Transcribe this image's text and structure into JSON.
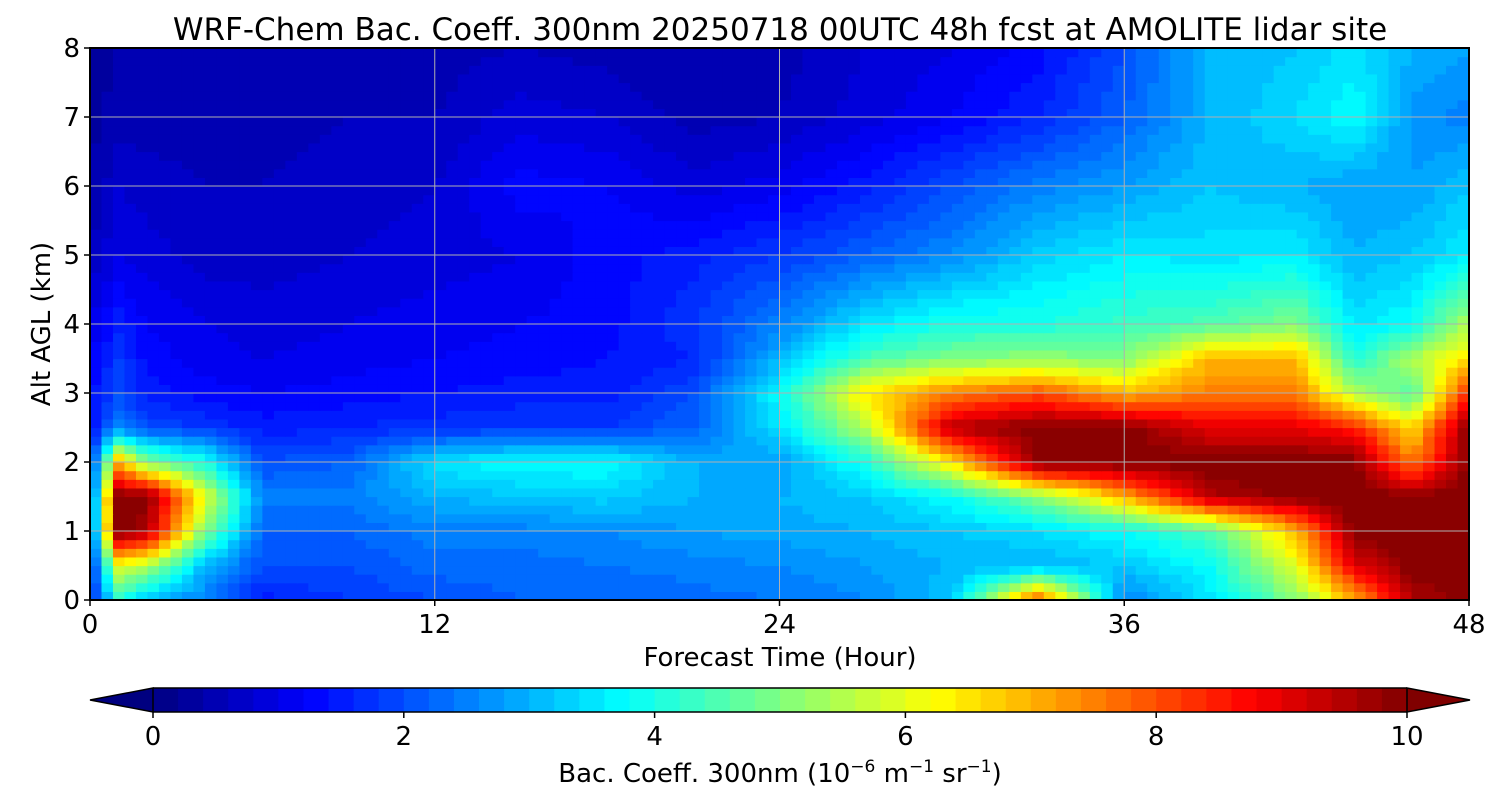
{
  "chart_data": {
    "type": "heatmap",
    "title": "WRF-Chem Bac. Coeff. 300nm  20250718 00UTC 48h fcst at AMOLITE lidar site",
    "xlabel": "Forecast Time (Hour)",
    "ylabel": "Alt AGL (km)",
    "xlim": [
      0,
      48
    ],
    "ylim": [
      0,
      8
    ],
    "xticks": [
      "0",
      "12",
      "24",
      "36",
      "48"
    ],
    "yticks": [
      "0",
      "1",
      "2",
      "3",
      "4",
      "5",
      "6",
      "7",
      "8"
    ],
    "grid": true,
    "colormap": "jet",
    "colorbar": {
      "label_main": "Bac. Coeff. 300nm  (10",
      "exp1": "−6",
      "label_mid": " m",
      "exp2": "−1",
      "label_mid2": " sr",
      "exp3": "−1",
      "label_end": ")",
      "range": [
        0,
        10
      ],
      "extend": "both",
      "orientation": "horizontal",
      "ticks": [
        "0",
        "2",
        "4",
        "6",
        "8",
        "10"
      ]
    },
    "x_hours": [
      0,
      1,
      2,
      4,
      6,
      9,
      12,
      15,
      18,
      21,
      24,
      27,
      30,
      33,
      36,
      39,
      42,
      44,
      46,
      48
    ],
    "y_km": [
      0,
      0.5,
      1,
      1.5,
      2,
      2.5,
      3,
      3.5,
      4,
      5,
      6,
      7,
      8
    ],
    "values": [
      [
        1.5,
        4.0,
        3.0,
        2.5,
        1.5,
        1.8,
        2.0,
        2.2,
        2.2,
        2.3,
        2.4,
        2.6,
        3.2,
        8.0,
        2.5,
        3.5,
        5.0,
        7.0,
        9.5,
        10.0
      ],
      [
        1.5,
        6.0,
        5.5,
        3.0,
        2.0,
        2.0,
        2.3,
        2.3,
        2.4,
        2.5,
        2.6,
        2.8,
        3.0,
        3.0,
        3.2,
        3.8,
        6.0,
        9.0,
        10.0,
        10.0
      ],
      [
        1.5,
        10.0,
        9.5,
        5.0,
        2.2,
        2.2,
        2.5,
        2.5,
        2.6,
        2.8,
        2.9,
        3.0,
        3.2,
        3.4,
        3.8,
        4.5,
        7.0,
        10.0,
        10.0,
        10.0
      ],
      [
        1.5,
        10.0,
        10.0,
        6.0,
        2.5,
        2.5,
        3.0,
        3.2,
        3.3,
        3.0,
        3.0,
        3.2,
        3.8,
        5.0,
        7.0,
        9.5,
        10.0,
        10.0,
        10.0,
        10.0
      ],
      [
        1.5,
        7.0,
        5.0,
        4.0,
        2.0,
        2.2,
        3.5,
        3.8,
        3.8,
        3.0,
        2.8,
        4.0,
        6.5,
        10.0,
        10.0,
        10.0,
        10.0,
        10.0,
        7.5,
        10.0
      ],
      [
        1.4,
        2.5,
        2.0,
        1.8,
        1.5,
        1.6,
        1.7,
        1.8,
        1.8,
        2.2,
        3.5,
        5.5,
        9.5,
        10.0,
        10.0,
        9.0,
        9.0,
        8.5,
        6.5,
        10.0
      ],
      [
        1.3,
        2.0,
        1.5,
        1.3,
        1.2,
        1.3,
        1.4,
        1.5,
        1.5,
        2.0,
        3.8,
        6.5,
        7.5,
        8.0,
        7.0,
        7.5,
        7.5,
        5.5,
        4.5,
        8.5
      ],
      [
        1.2,
        1.8,
        1.3,
        1.1,
        1.0,
        1.1,
        1.2,
        1.3,
        1.4,
        1.6,
        3.0,
        4.5,
        5.0,
        5.2,
        5.0,
        7.0,
        7.0,
        4.0,
        5.5,
        6.5
      ],
      [
        1.0,
        1.5,
        1.2,
        1.0,
        0.9,
        1.0,
        1.1,
        1.2,
        1.3,
        1.8,
        2.5,
        3.5,
        4.0,
        4.0,
        4.3,
        4.5,
        5.0,
        3.5,
        3.8,
        5.5
      ],
      [
        0.6,
        1.0,
        0.9,
        0.7,
        0.7,
        0.8,
        0.9,
        1.0,
        1.3,
        1.5,
        1.8,
        2.2,
        2.6,
        3.3,
        3.6,
        3.5,
        3.6,
        3.0,
        3.2,
        3.6
      ],
      [
        0.4,
        0.8,
        0.7,
        0.6,
        0.6,
        0.7,
        0.8,
        1.3,
        1.2,
        0.9,
        1.1,
        1.5,
        2.0,
        2.5,
        2.8,
        3.2,
        3.0,
        2.8,
        2.8,
        3.2
      ],
      [
        0.3,
        0.5,
        0.5,
        0.5,
        0.5,
        0.6,
        0.6,
        0.9,
        0.8,
        0.5,
        0.6,
        0.9,
        1.2,
        1.6,
        2.2,
        3.0,
        3.4,
        3.8,
        2.7,
        2.5
      ],
      [
        0.3,
        0.4,
        0.4,
        0.4,
        0.4,
        0.5,
        0.5,
        0.6,
        0.5,
        0.4,
        0.5,
        0.8,
        1.0,
        1.3,
        2.0,
        3.0,
        3.2,
        3.5,
        3.0,
        2.8
      ]
    ]
  }
}
